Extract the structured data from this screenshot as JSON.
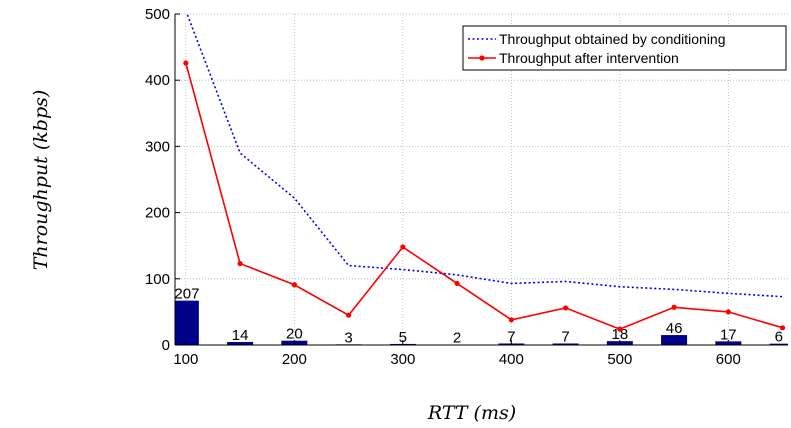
{
  "chart_data": {
    "type": "line",
    "title": "",
    "xlabel": "RTT (ms)",
    "ylabel": "Throughput (kbps)",
    "xlim": [
      90,
      655
    ],
    "ylim": [
      0,
      500
    ],
    "xticks": [
      100,
      200,
      300,
      400,
      500,
      600
    ],
    "yticks": [
      0,
      100,
      200,
      300,
      400,
      500
    ],
    "grid": true,
    "legend_position": "top-right",
    "series": [
      {
        "name": "Throughput obtained by conditioning",
        "style": "dotted",
        "color": "#0000ff",
        "x": [
          100,
          150,
          200,
          250,
          300,
          350,
          400,
          450,
          500,
          550,
          600,
          650
        ],
        "y": [
          505,
          290,
          222,
          120,
          114,
          106,
          93,
          96,
          88,
          84,
          78,
          73
        ]
      },
      {
        "name": "Throughput after intervention",
        "style": "solid-dot",
        "color": "#ff0000",
        "x": [
          100,
          150,
          200,
          250,
          300,
          350,
          400,
          450,
          500,
          550,
          600,
          650
        ],
        "y": [
          426,
          123,
          91,
          45,
          148,
          93,
          38,
          56,
          24,
          57,
          50,
          26
        ]
      }
    ],
    "bars": {
      "color": "#00008b",
      "x": [
        100,
        150,
        200,
        250,
        300,
        350,
        400,
        450,
        500,
        550,
        600,
        650
      ],
      "values": [
        67,
        4.5,
        6.5,
        1,
        1.6,
        0.6,
        2.3,
        2.3,
        5.8,
        15,
        5.5,
        2
      ],
      "labels": [
        "207",
        "14",
        "20",
        "3",
        "5",
        "2",
        "7",
        "7",
        "18",
        "46",
        "17",
        "6"
      ]
    }
  }
}
